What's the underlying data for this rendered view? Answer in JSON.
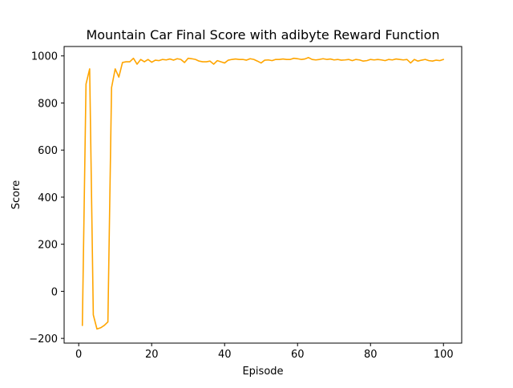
{
  "chart_data": {
    "type": "line",
    "title": "Mountain Car Final Score with adibyte Reward Function",
    "xlabel": "Episode",
    "ylabel": "Score",
    "xlim": [
      -4,
      105
    ],
    "ylim": [
      -220,
      1040
    ],
    "xticks": [
      0,
      20,
      40,
      60,
      80,
      100
    ],
    "yticks": [
      -200,
      0,
      200,
      400,
      600,
      800,
      1000
    ],
    "grid": false,
    "legend": "none",
    "series": [
      {
        "color": "#ffa500",
        "x": [
          1,
          2,
          3,
          4,
          5,
          6,
          7,
          8,
          9,
          10,
          11,
          12,
          13,
          14,
          15,
          16,
          17,
          18,
          19,
          20,
          21,
          22,
          23,
          24,
          25,
          26,
          27,
          28,
          29,
          30,
          31,
          32,
          33,
          34,
          35,
          36,
          37,
          38,
          39,
          40,
          41,
          42,
          43,
          44,
          45,
          46,
          47,
          48,
          49,
          50,
          51,
          52,
          53,
          54,
          55,
          56,
          57,
          58,
          59,
          60,
          61,
          62,
          63,
          64,
          65,
          66,
          67,
          68,
          69,
          70,
          71,
          72,
          73,
          74,
          75,
          76,
          77,
          78,
          79,
          80,
          81,
          82,
          83,
          84,
          85,
          86,
          87,
          88,
          89,
          90,
          91,
          92,
          93,
          94,
          95,
          96,
          97,
          98,
          99,
          100
        ],
        "values": [
          -145,
          880,
          945,
          -100,
          -160,
          -155,
          -145,
          -130,
          865,
          945,
          910,
          972,
          975,
          975,
          990,
          965,
          985,
          975,
          985,
          973,
          982,
          980,
          985,
          983,
          987,
          982,
          988,
          985,
          972,
          990,
          988,
          985,
          978,
          975,
          975,
          978,
          965,
          980,
          975,
          970,
          982,
          985,
          987,
          985,
          985,
          982,
          988,
          985,
          978,
          970,
          982,
          983,
          980,
          985,
          985,
          987,
          985,
          985,
          990,
          988,
          985,
          987,
          993,
          985,
          983,
          985,
          988,
          985,
          987,
          983,
          985,
          982,
          983,
          985,
          980,
          985,
          983,
          978,
          980,
          985,
          983,
          985,
          983,
          980,
          985,
          983,
          987,
          985,
          983,
          985,
          970,
          985,
          978,
          982,
          985,
          980,
          978,
          982,
          980,
          985
        ]
      }
    ]
  }
}
